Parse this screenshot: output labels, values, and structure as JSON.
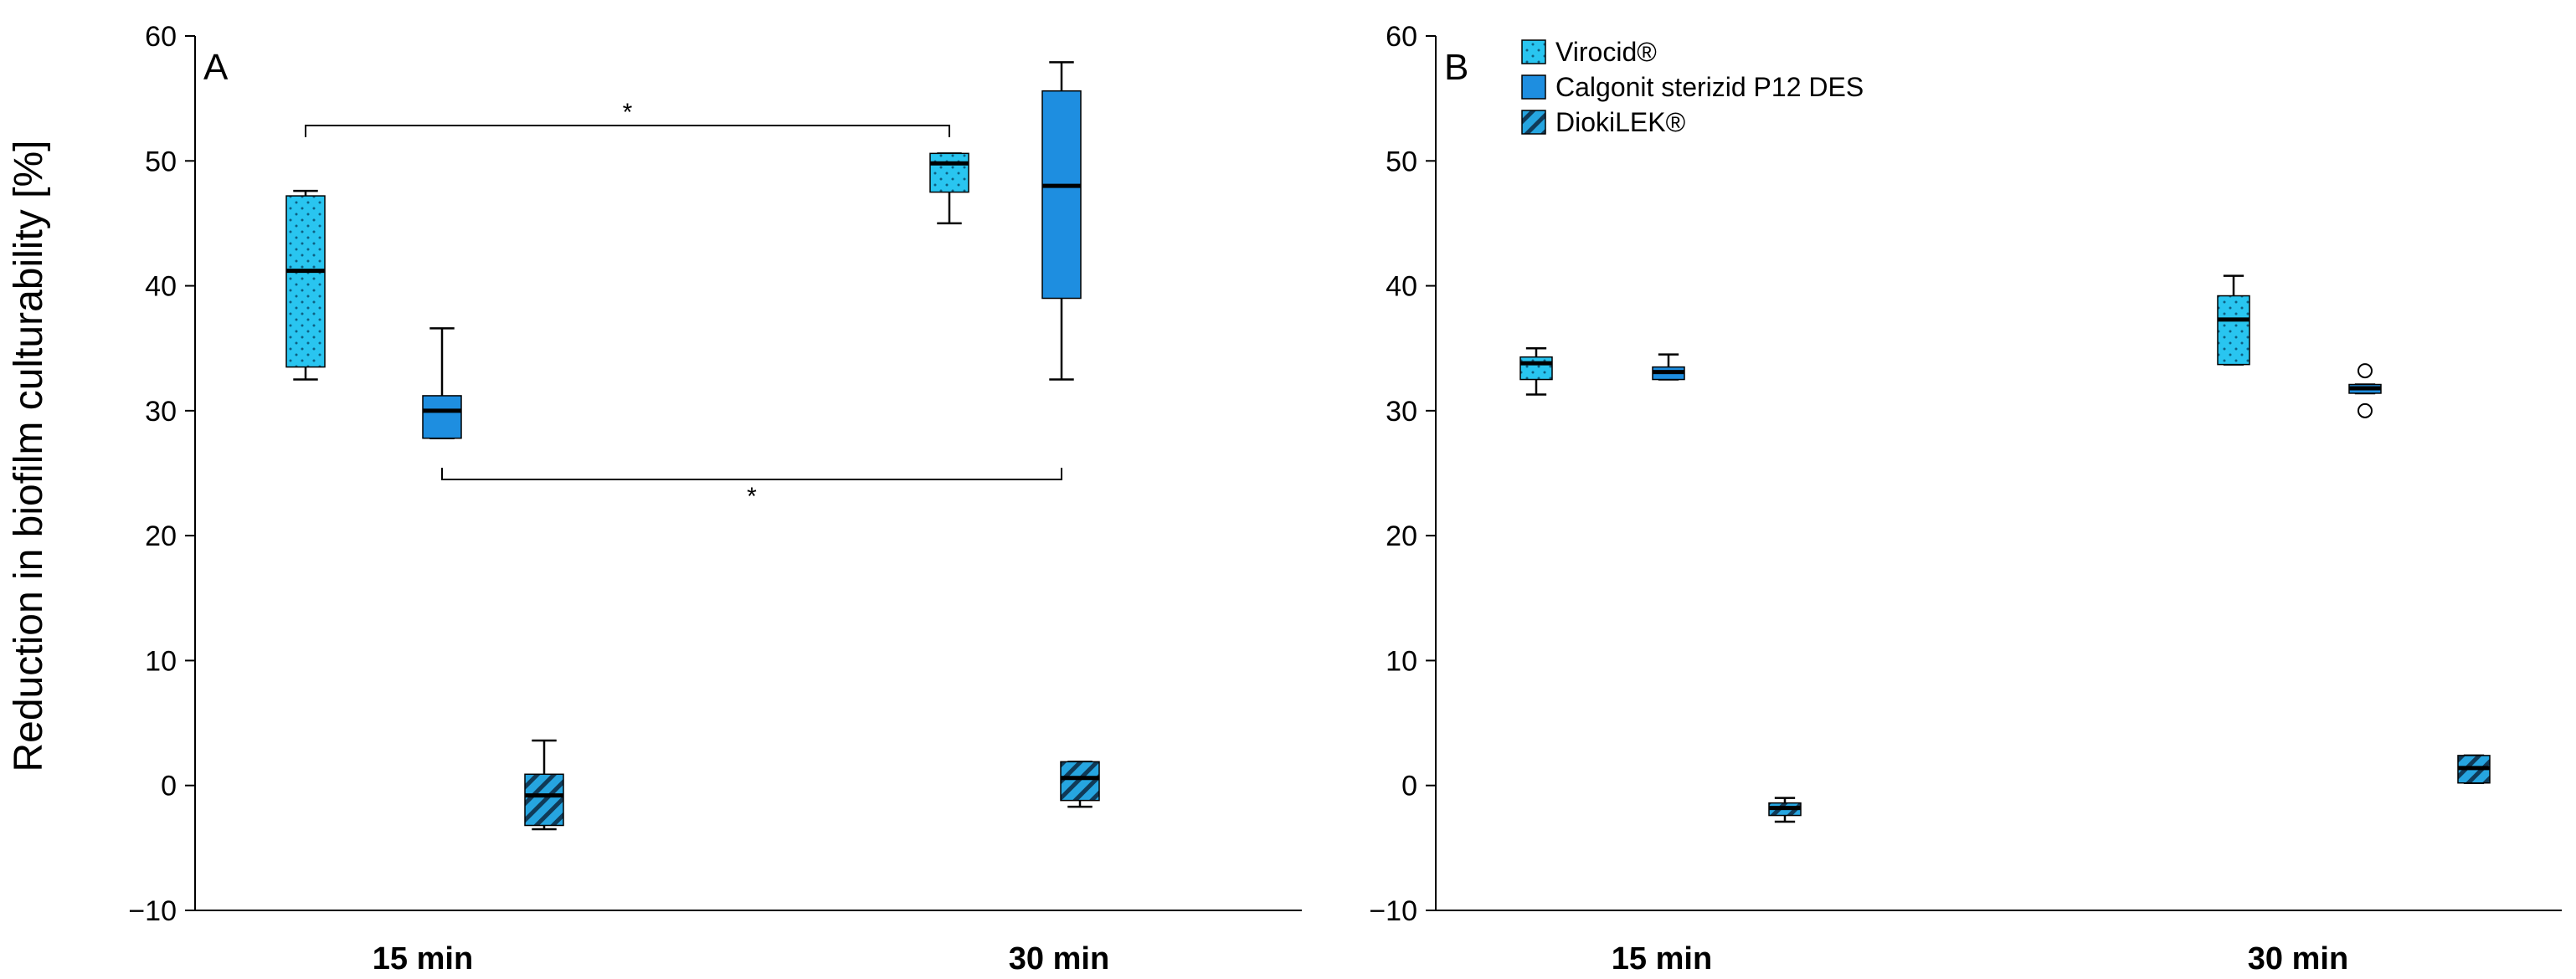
{
  "chart_data": [
    {
      "type": "box",
      "panel_label": "A",
      "ylabel": "Reduction in biofilm culturability [%]",
      "ylim": [
        -10,
        60
      ],
      "yticks": [
        -10,
        0,
        10,
        20,
        30,
        40,
        50,
        60
      ],
      "ytick_labels": [
        "−10",
        "0",
        "10",
        "20",
        "30",
        "40",
        "50",
        "60"
      ],
      "categories": [
        "15 min",
        "30 min"
      ],
      "series": [
        {
          "name": "Virocid®",
          "boxes": [
            {
              "category": "15 min",
              "min": 32.5,
              "q1": 33.5,
              "median": 41.2,
              "q3": 47.2,
              "max": 47.6,
              "outliers": []
            },
            {
              "category": "30 min",
              "min": 45.0,
              "q1": 47.5,
              "median": 49.8,
              "q3": 50.6,
              "max": 50.6,
              "outliers": []
            }
          ]
        },
        {
          "name": "Calgonit sterizid P12 DES",
          "boxes": [
            {
              "category": "15 min",
              "min": 27.8,
              "q1": 27.8,
              "median": 30.0,
              "q3": 31.2,
              "max": 36.6,
              "outliers": []
            },
            {
              "category": "30 min",
              "min": 32.5,
              "q1": 39.0,
              "median": 48.0,
              "q3": 55.6,
              "max": 57.9,
              "outliers": []
            }
          ]
        },
        {
          "name": "DiokiLEK®",
          "boxes": [
            {
              "category": "15 min",
              "min": -3.5,
              "q1": -3.2,
              "median": -0.8,
              "q3": 0.9,
              "max": 3.6,
              "outliers": []
            },
            {
              "category": "30 min",
              "min": -1.7,
              "q1": -1.2,
              "median": 0.6,
              "q3": 1.9,
              "max": 1.9,
              "outliers": []
            }
          ]
        }
      ],
      "annotations": [
        {
          "text": "*",
          "from": "Virocid® 15 min",
          "to": "Virocid® 30 min"
        },
        {
          "text": "*",
          "from": "Calgonit sterizid P12 DES 15 min",
          "to": "Calgonit sterizid P12 DES 30 min"
        }
      ]
    },
    {
      "type": "box",
      "panel_label": "B",
      "ylim": [
        -10,
        60
      ],
      "yticks": [
        -10,
        0,
        10,
        20,
        30,
        40,
        50,
        60
      ],
      "ytick_labels": [
        "−10",
        "0",
        "10",
        "20",
        "30",
        "40",
        "50",
        "60"
      ],
      "categories": [
        "15 min",
        "30 min"
      ],
      "legend": {
        "position": "top-left",
        "entries": [
          "Virocid®",
          "Calgonit sterizid P12 DES",
          "DiokiLEK®"
        ]
      },
      "series": [
        {
          "name": "Virocid®",
          "boxes": [
            {
              "category": "15 min",
              "min": 31.3,
              "q1": 32.5,
              "median": 33.8,
              "q3": 34.3,
              "max": 35.0,
              "outliers": []
            },
            {
              "category": "30 min",
              "min": 33.7,
              "q1": 33.7,
              "median": 37.3,
              "q3": 39.2,
              "max": 40.8,
              "outliers": []
            }
          ]
        },
        {
          "name": "Calgonit sterizid P12 DES",
          "boxes": [
            {
              "category": "15 min",
              "min": 32.5,
              "q1": 32.5,
              "median": 33.1,
              "q3": 33.5,
              "max": 34.5,
              "outliers": []
            },
            {
              "category": "30 min",
              "min": 31.4,
              "q1": 31.4,
              "median": 31.8,
              "q3": 32.1,
              "max": 32.1,
              "outliers": [
                33.2,
                30.0
              ]
            }
          ]
        },
        {
          "name": "DiokiLEK®",
          "boxes": [
            {
              "category": "15 min",
              "min": -2.9,
              "q1": -2.4,
              "median": -1.8,
              "q3": -1.4,
              "max": -1.0,
              "outliers": []
            },
            {
              "category": "30 min",
              "min": 0.2,
              "q1": 0.2,
              "median": 1.4,
              "q3": 2.4,
              "max": 2.4,
              "outliers": []
            }
          ]
        }
      ]
    }
  ],
  "colors": {
    "virocid": "#29C5F0",
    "calgonit": "#1E8EE0",
    "diokilek": "#26A5E0",
    "line": "#000000"
  }
}
